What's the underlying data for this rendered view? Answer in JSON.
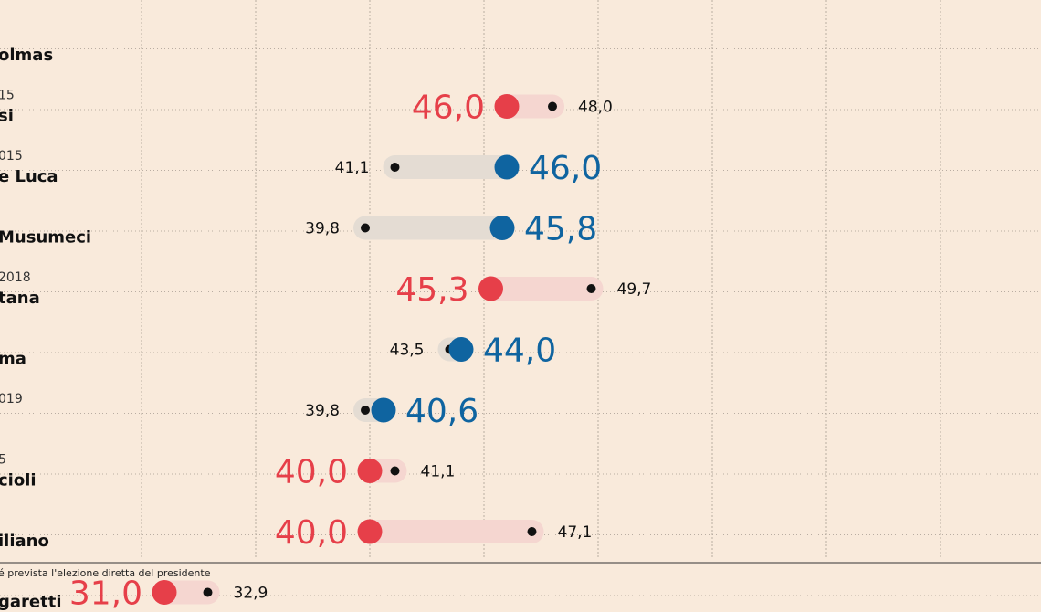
{
  "chart_data": {
    "type": "dumbbell",
    "colors": {
      "red": "#e63f49",
      "blue": "#0f64a0",
      "red_track": "#f5d6d0",
      "blue_track": "#e4dcd3",
      "background": "#f9eadb",
      "grid": "#b9ada2",
      "dot": "#111111"
    },
    "grid": true,
    "footnote": "é prevista l'elezione diretta del presidente",
    "rows": [
      {
        "sub": "",
        "name": "olmas",
        "big": null,
        "small": null,
        "color": "red"
      },
      {
        "sub": "15",
        "name": "si",
        "big": 46.0,
        "big_label": "46,0",
        "small": 48.0,
        "small_label": "48,0",
        "color": "red"
      },
      {
        "sub": "015",
        "name": "e Luca",
        "big": 46.0,
        "big_label": "46,0",
        "small": 41.1,
        "small_label": "41,1",
        "color": "blue"
      },
      {
        "sub": "",
        "name": "Musumeci",
        "big": 45.8,
        "big_label": "45,8",
        "small": 39.8,
        "small_label": "39,8",
        "color": "blue"
      },
      {
        "sub": "2018",
        "name": "tana",
        "big": 45.3,
        "big_label": "45,3",
        "small": 49.7,
        "small_label": "49,7",
        "color": "red"
      },
      {
        "sub": "",
        "name": "ma",
        "big": 44.0,
        "big_label": "44,0",
        "small": 43.5,
        "small_label": "43,5",
        "color": "blue"
      },
      {
        "sub": "019",
        "name": "",
        "big": 40.6,
        "big_label": "40,6",
        "small": 39.8,
        "small_label": "39,8",
        "color": "blue"
      },
      {
        "sub": "5",
        "name": "cioli",
        "big": 40.0,
        "big_label": "40,0",
        "small": 41.1,
        "small_label": "41,1",
        "color": "red"
      },
      {
        "sub": "",
        "name": "iliano",
        "big": 40.0,
        "big_label": "40,0",
        "small": 47.1,
        "small_label": "47,1",
        "color": "red"
      },
      {
        "sub": "",
        "name": "garetti",
        "big": 31.0,
        "big_label": "31,0",
        "small": 32.9,
        "small_label": "32,9",
        "color": "red"
      }
    ]
  }
}
